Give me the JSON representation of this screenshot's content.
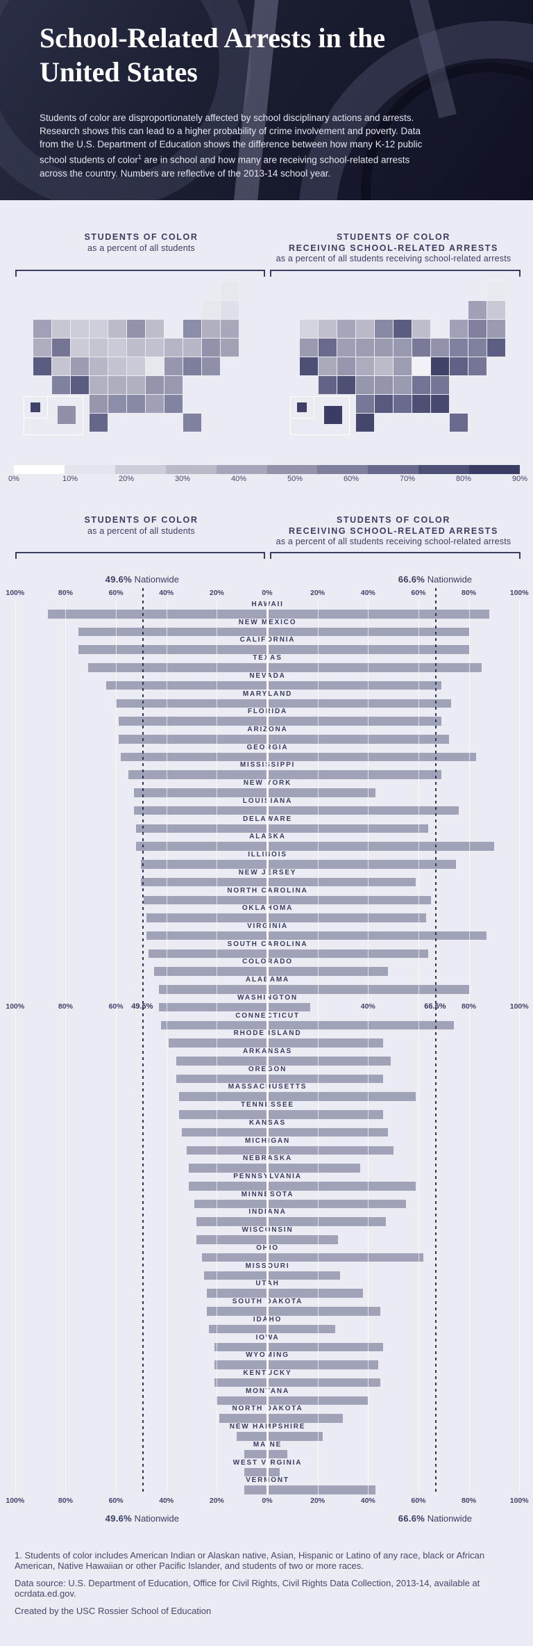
{
  "header": {
    "title": "School-Related Arrests in the United States",
    "intro_before": "Students of color are disproportionately affected by school disciplinary actions and arrests. Research shows this can lead to a higher probability of crime involvement and poverty. Data from the U.S. Department of Education shows the difference between how many K-12 public school students of color",
    "intro_sup": "1",
    "intro_after": " are in school and how many are receiving school-related arrests across the country. Numbers are reflective of the 2013-14 school year."
  },
  "maps": {
    "left": {
      "title_line1": "STUDENTS OF COLOR",
      "subtitle": "as a percent of all students"
    },
    "right": {
      "title_line1": "STUDENTS OF COLOR",
      "title_line2": "RECEIVING SCHOOL-RELATED ARRESTS",
      "subtitle": "as a percent of all students receiving school-related arrests"
    }
  },
  "legend": {
    "labels": [
      "0%",
      "10%",
      "20%",
      "30%",
      "40%",
      "50%",
      "60%",
      "70%",
      "80%",
      "90%"
    ],
    "colors": [
      "#ffffff",
      "#e4e4ec",
      "#cdcdd9",
      "#b9b9c8",
      "#a6a6ba",
      "#9293ab",
      "#7e7f9d",
      "#67688c",
      "#4e4f75",
      "#3a3c63"
    ]
  },
  "chart_data": {
    "type": "bar",
    "orientation": "diverging-horizontal",
    "title_left_line1": "STUDENTS OF COLOR",
    "subtitle_left": "as a percent of all students",
    "title_right_line1": "STUDENTS OF COLOR",
    "title_right_line2": "RECEIVING SCHOOL-RELATED ARRESTS",
    "subtitle_right": "as a percent of all students receiving school-related arrests",
    "left_series": "Students of color as a percent of all students",
    "right_series": "Students of color receiving school-related arrests as a percent of all students receiving school-related arrests",
    "xlim_each_side": [
      0,
      100
    ],
    "axis_ticks": [
      {
        "p": -100,
        "t": "100%"
      },
      {
        "p": -80,
        "t": "80%"
      },
      {
        "p": -60,
        "t": "60%"
      },
      {
        "p": -40,
        "t": "40%"
      },
      {
        "p": -20,
        "t": "20%"
      },
      {
        "p": 0,
        "t": "0%"
      },
      {
        "p": 20,
        "t": "20%"
      },
      {
        "p": 40,
        "t": "40%"
      },
      {
        "p": 60,
        "t": "60%"
      },
      {
        "p": 80,
        "t": "80%"
      },
      {
        "p": 100,
        "t": "100%"
      }
    ],
    "mid_axis_ticks": [
      {
        "p": -100,
        "t": "100%"
      },
      {
        "p": -80,
        "t": "80%"
      },
      {
        "p": -60,
        "t": "60%"
      },
      {
        "p": -49.6,
        "t": "49.6%",
        "bold": true
      },
      {
        "p": 40,
        "t": "40%"
      },
      {
        "p": 66.6,
        "t": "66.6%",
        "bold": true
      },
      {
        "p": 80,
        "t": "80%"
      },
      {
        "p": 100,
        "t": "100%"
      }
    ],
    "nationwide": {
      "left_value": "49.6%",
      "right_value": "66.6%",
      "label": "Nationwide",
      "left_pct": 49.6,
      "right_pct": 66.6
    },
    "bar_color": "#a0a2b7",
    "states": [
      {
        "name": "HAWAII",
        "abbr": "HI",
        "students_of_color_pct": 87,
        "arrests_pct": 88
      },
      {
        "name": "NEW MEXICO",
        "abbr": "NM",
        "students_of_color_pct": 75,
        "arrests_pct": 80
      },
      {
        "name": "CALIFORNIA",
        "abbr": "CA",
        "students_of_color_pct": 75,
        "arrests_pct": 80
      },
      {
        "name": "TEXAS",
        "abbr": "TX",
        "students_of_color_pct": 71,
        "arrests_pct": 85
      },
      {
        "name": "NEVADA",
        "abbr": "NV",
        "students_of_color_pct": 64,
        "arrests_pct": 69
      },
      {
        "name": "MARYLAND",
        "abbr": "MD",
        "students_of_color_pct": 60,
        "arrests_pct": 73
      },
      {
        "name": "FLORIDA",
        "abbr": "FL",
        "students_of_color_pct": 59,
        "arrests_pct": 69
      },
      {
        "name": "ARIZONA",
        "abbr": "AZ",
        "students_of_color_pct": 59,
        "arrests_pct": 72
      },
      {
        "name": "GEORGIA",
        "abbr": "GA",
        "students_of_color_pct": 58,
        "arrests_pct": 83
      },
      {
        "name": "MISSISSIPPI",
        "abbr": "MS",
        "students_of_color_pct": 55,
        "arrests_pct": 69
      },
      {
        "name": "NEW YORK",
        "abbr": "NY",
        "students_of_color_pct": 53,
        "arrests_pct": 43
      },
      {
        "name": "LOUISIANA",
        "abbr": "LA",
        "students_of_color_pct": 53,
        "arrests_pct": 76
      },
      {
        "name": "DELAWARE",
        "abbr": "DE",
        "students_of_color_pct": 52,
        "arrests_pct": 64
      },
      {
        "name": "ALASKA",
        "abbr": "AK",
        "students_of_color_pct": 52,
        "arrests_pct": 90
      },
      {
        "name": "ILLINOIS",
        "abbr": "IL",
        "students_of_color_pct": 50,
        "arrests_pct": 75
      },
      {
        "name": "NEW JERSEY",
        "abbr": "NJ",
        "students_of_color_pct": 50,
        "arrests_pct": 59
      },
      {
        "name": "NORTH CAROLINA",
        "abbr": "NC",
        "students_of_color_pct": 49,
        "arrests_pct": 65
      },
      {
        "name": "OKLAHOMA",
        "abbr": "OK",
        "students_of_color_pct": 48,
        "arrests_pct": 63
      },
      {
        "name": "VIRGINIA",
        "abbr": "VA",
        "students_of_color_pct": 48,
        "arrests_pct": 87
      },
      {
        "name": "SOUTH CAROLINA",
        "abbr": "SC",
        "students_of_color_pct": 47,
        "arrests_pct": 64
      },
      {
        "name": "COLORADO",
        "abbr": "CO",
        "students_of_color_pct": 45,
        "arrests_pct": 48
      },
      {
        "name": "ALABAMA",
        "abbr": "AL",
        "students_of_color_pct": 43,
        "arrests_pct": 80
      },
      {
        "name": "WASHINGTON",
        "abbr": "WA",
        "students_of_color_pct": 43,
        "arrests_pct": 17
      },
      {
        "name": "CONNECTICUT",
        "abbr": "CT",
        "students_of_color_pct": 42,
        "arrests_pct": 74
      },
      {
        "name": "RHODE ISLAND",
        "abbr": "RI",
        "students_of_color_pct": 39,
        "arrests_pct": 46
      },
      {
        "name": "ARKANSAS",
        "abbr": "AR",
        "students_of_color_pct": 36,
        "arrests_pct": 49
      },
      {
        "name": "OREGON",
        "abbr": "OR",
        "students_of_color_pct": 36,
        "arrests_pct": 46
      },
      {
        "name": "MASSACHUSETTS",
        "abbr": "MA",
        "students_of_color_pct": 35,
        "arrests_pct": 59
      },
      {
        "name": "TENNESSEE",
        "abbr": "TN",
        "students_of_color_pct": 35,
        "arrests_pct": 46
      },
      {
        "name": "KANSAS",
        "abbr": "KS",
        "students_of_color_pct": 34,
        "arrests_pct": 48
      },
      {
        "name": "MICHIGAN",
        "abbr": "MI",
        "students_of_color_pct": 32,
        "arrests_pct": 50
      },
      {
        "name": "NEBRASKA",
        "abbr": "NE",
        "students_of_color_pct": 31,
        "arrests_pct": 37
      },
      {
        "name": "PENNSYLVANIA",
        "abbr": "PA",
        "students_of_color_pct": 31,
        "arrests_pct": 59
      },
      {
        "name": "MINNESOTA",
        "abbr": "MN",
        "students_of_color_pct": 29,
        "arrests_pct": 55
      },
      {
        "name": "INDIANA",
        "abbr": "IN",
        "students_of_color_pct": 28,
        "arrests_pct": 47
      },
      {
        "name": "WISCONSIN",
        "abbr": "WI",
        "students_of_color_pct": 28,
        "arrests_pct": 28
      },
      {
        "name": "OHIO",
        "abbr": "OH",
        "students_of_color_pct": 26,
        "arrests_pct": 62
      },
      {
        "name": "MISSOURI",
        "abbr": "MO",
        "students_of_color_pct": 25,
        "arrests_pct": 29
      },
      {
        "name": "UTAH",
        "abbr": "UT",
        "students_of_color_pct": 24,
        "arrests_pct": 38
      },
      {
        "name": "SOUTH DAKOTA",
        "abbr": "SD",
        "students_of_color_pct": 24,
        "arrests_pct": 45
      },
      {
        "name": "IDAHO",
        "abbr": "ID",
        "students_of_color_pct": 23,
        "arrests_pct": 27
      },
      {
        "name": "IOWA",
        "abbr": "IA",
        "students_of_color_pct": 21,
        "arrests_pct": 46
      },
      {
        "name": "WYOMING",
        "abbr": "WY",
        "students_of_color_pct": 21,
        "arrests_pct": 44
      },
      {
        "name": "KENTUCKY",
        "abbr": "KY",
        "students_of_color_pct": 21,
        "arrests_pct": 45
      },
      {
        "name": "MONTANA",
        "abbr": "MT",
        "students_of_color_pct": 20,
        "arrests_pct": 40
      },
      {
        "name": "NORTH DAKOTA",
        "abbr": "ND",
        "students_of_color_pct": 19,
        "arrests_pct": 30
      },
      {
        "name": "NEW HAMPSHIRE",
        "abbr": "NH",
        "students_of_color_pct": 12,
        "arrests_pct": 22
      },
      {
        "name": "MAINE",
        "abbr": "ME",
        "students_of_color_pct": 9,
        "arrests_pct": 8
      },
      {
        "name": "WEST VIRGINIA",
        "abbr": "WV",
        "students_of_color_pct": 9,
        "arrests_pct": 5
      },
      {
        "name": "VERMONT",
        "abbr": "VT",
        "students_of_color_pct": 9,
        "arrests_pct": 43
      }
    ]
  },
  "footer": {
    "note1": "1. Students of color includes American Indian or Alaskan native, Asian, Hispanic or Latino of any race, black or African American, Native Hawaiian or other Pacific Islander, and students of two or more races.",
    "note2": "Data source: U.S. Department of Education, Office for Civil Rights, Civil Rights Data Collection, 2013-14, available at ocrdata.ed.gov.",
    "note3": "Created by the USC Rossier School of Education"
  }
}
